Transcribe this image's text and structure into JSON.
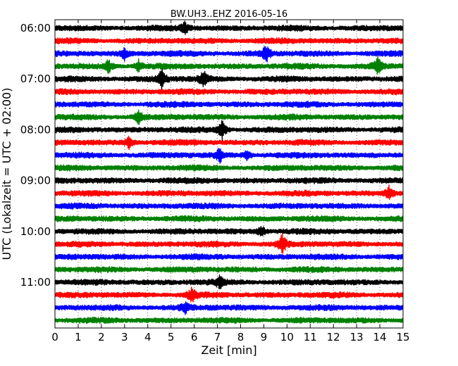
{
  "chart_data": {
    "type": "line",
    "title": "BW.UH3..EHZ 2016-05-16",
    "xlabel": "Zeit  [min]",
    "ylabel": "UTC (Lokalzeit = UTC + 02:00)",
    "xlim": [
      0,
      15
    ],
    "x_ticks": [
      "0",
      "1",
      "2",
      "3",
      "4",
      "5",
      "6",
      "7",
      "8",
      "9",
      "10",
      "11",
      "12",
      "13",
      "14",
      "15"
    ],
    "y_tick_labels": [
      "06:00",
      "07:00",
      "08:00",
      "09:00",
      "10:00",
      "11:00"
    ],
    "trace_interval_min": 15,
    "trace_colors": [
      "#000000",
      "#ff0000",
      "#0000ff",
      "#008000"
    ],
    "traces": [
      {
        "start": "06:00",
        "color": "#000000"
      },
      {
        "start": "06:15",
        "color": "#ff0000"
      },
      {
        "start": "06:30",
        "color": "#0000ff"
      },
      {
        "start": "06:45",
        "color": "#008000"
      },
      {
        "start": "07:00",
        "color": "#000000"
      },
      {
        "start": "07:15",
        "color": "#ff0000"
      },
      {
        "start": "07:30",
        "color": "#0000ff"
      },
      {
        "start": "07:45",
        "color": "#008000"
      },
      {
        "start": "08:00",
        "color": "#000000"
      },
      {
        "start": "08:15",
        "color": "#ff0000"
      },
      {
        "start": "08:30",
        "color": "#0000ff"
      },
      {
        "start": "08:45",
        "color": "#008000"
      },
      {
        "start": "09:00",
        "color": "#000000"
      },
      {
        "start": "09:15",
        "color": "#ff0000"
      },
      {
        "start": "09:30",
        "color": "#0000ff"
      },
      {
        "start": "09:45",
        "color": "#008000"
      },
      {
        "start": "10:00",
        "color": "#000000"
      },
      {
        "start": "10:15",
        "color": "#ff0000"
      },
      {
        "start": "10:30",
        "color": "#0000ff"
      },
      {
        "start": "10:45",
        "color": "#008000"
      },
      {
        "start": "11:00",
        "color": "#000000"
      },
      {
        "start": "11:15",
        "color": "#ff0000"
      },
      {
        "start": "11:30",
        "color": "#0000ff"
      },
      {
        "start": "11:45",
        "color": "#008000"
      }
    ],
    "events": [
      {
        "trace": 0,
        "minute": 5.6,
        "amp": 1.4
      },
      {
        "trace": 2,
        "minute": 3.0,
        "amp": 1.3
      },
      {
        "trace": 2,
        "minute": 9.1,
        "amp": 2.0
      },
      {
        "trace": 3,
        "minute": 2.3,
        "amp": 1.6
      },
      {
        "trace": 3,
        "minute": 3.6,
        "amp": 1.5
      },
      {
        "trace": 3,
        "minute": 13.9,
        "amp": 2.0
      },
      {
        "trace": 4,
        "minute": 4.6,
        "amp": 2.6
      },
      {
        "trace": 4,
        "minute": 6.4,
        "amp": 1.9
      },
      {
        "trace": 7,
        "minute": 3.6,
        "amp": 1.5
      },
      {
        "trace": 8,
        "minute": 7.2,
        "amp": 2.4
      },
      {
        "trace": 9,
        "minute": 3.2,
        "amp": 1.4
      },
      {
        "trace": 10,
        "minute": 7.1,
        "amp": 1.7
      },
      {
        "trace": 10,
        "minute": 8.3,
        "amp": 1.4
      },
      {
        "trace": 13,
        "minute": 14.4,
        "amp": 1.6
      },
      {
        "trace": 16,
        "minute": 8.9,
        "amp": 1.3
      },
      {
        "trace": 17,
        "minute": 9.8,
        "amp": 2.6
      },
      {
        "trace": 20,
        "minute": 7.1,
        "amp": 1.3
      },
      {
        "trace": 21,
        "minute": 5.9,
        "amp": 1.6
      },
      {
        "trace": 22,
        "minute": 5.6,
        "amp": 1.3
      }
    ],
    "grid": "vertical"
  }
}
